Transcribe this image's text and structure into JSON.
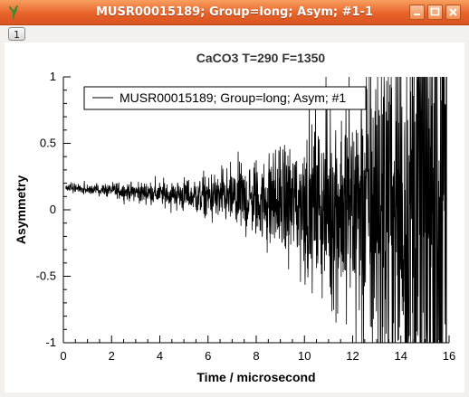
{
  "window": {
    "title": "MUSR00015189; Group=long; Asym; #1-1",
    "page_tab_label": "1"
  },
  "colors": {
    "titlebar": "#e8632a",
    "series": "#000000"
  },
  "icons": [
    "app-icon",
    "minimize-icon",
    "maximize-icon",
    "close-icon"
  ],
  "chart_data": {
    "type": "line",
    "title": "CaCO3 T=290 F=1350",
    "xlabel": "Time / microsecond",
    "ylabel": "Asymmetry",
    "xlim": [
      0,
      16
    ],
    "ylim": [
      -1,
      1
    ],
    "xticks": [
      0,
      2,
      4,
      6,
      8,
      10,
      12,
      14,
      16
    ],
    "yticks": [
      1,
      0.5,
      0,
      -0.5,
      -1
    ],
    "xtick_labels": [
      "0",
      "2",
      "4",
      "6",
      "8",
      "10",
      "12",
      "14",
      "16"
    ],
    "ytick_labels": [
      "1",
      "0.5",
      "0",
      "-0.5",
      "-1"
    ],
    "grid": false,
    "legend": {
      "placement": "top-left",
      "entries": [
        "MUSR00015189; Group=long; Asym; #1"
      ]
    },
    "series": [
      {
        "name": "MUSR00015189; Group=long; Asym; #1",
        "trend": {
          "mean_start": 0.17,
          "mean_end": 0.0,
          "noise_amplitude_start": 0.015,
          "noise_amplitude_growth_per_us": 0.29
        }
      }
    ]
  }
}
